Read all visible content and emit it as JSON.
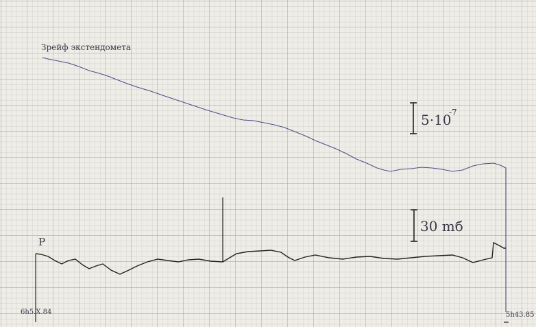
{
  "annotations": {
    "trace_label": "Зрейф экстендомета",
    "strain_scale": "5·10",
    "strain_scale_exp": "-7",
    "pressure_scale": "30 mб",
    "marker": "P",
    "start_time": "6h5.X.84",
    "end_time": "5h43.85"
  }
}
